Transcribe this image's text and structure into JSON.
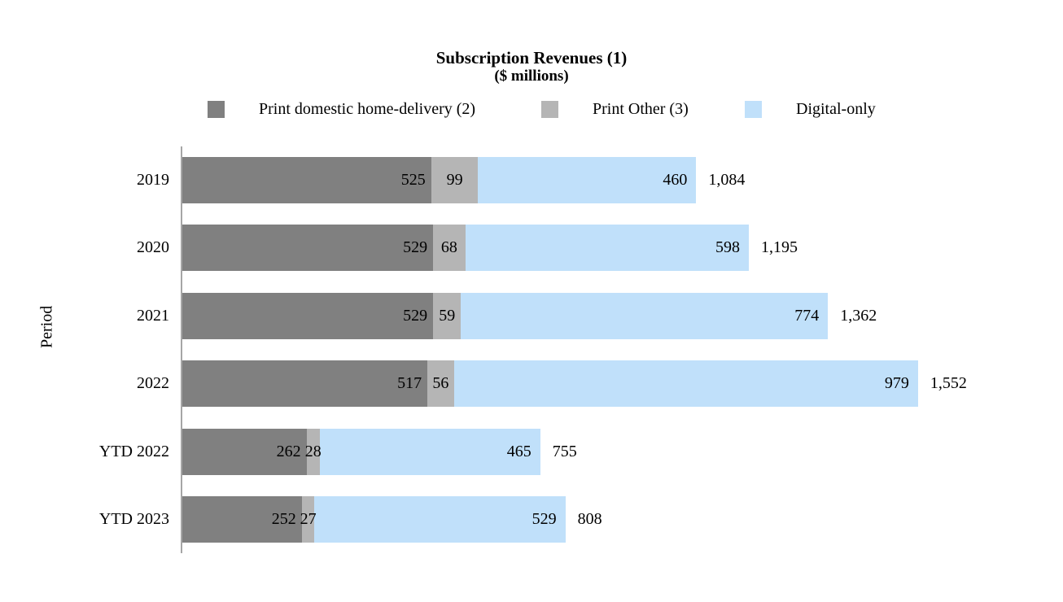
{
  "title": {
    "line1": "Subscription Revenues (1)",
    "line2": "($ millions)"
  },
  "y_axis_title": "Period",
  "legend": [
    {
      "label": "Print domestic home-delivery (2)",
      "color": "#808080"
    },
    {
      "label": "Print Other (3)",
      "color": "#b5b5b5"
    },
    {
      "label": "Digital-only",
      "color": "#c0e0fa"
    }
  ],
  "chart_data": {
    "type": "bar",
    "orientation": "horizontal",
    "stacked": true,
    "title": "Subscription Revenues (1)",
    "subtitle": "($ millions)",
    "xlabel": "",
    "ylabel": "Period",
    "categories": [
      "2019",
      "2020",
      "2021",
      "2022",
      "YTD 2022",
      "YTD 2023"
    ],
    "series": [
      {
        "name": "Print domestic home-delivery (2)",
        "color": "#808080",
        "values": [
          525,
          529,
          529,
          517,
          262,
          252
        ]
      },
      {
        "name": "Print Other (3)",
        "color": "#b5b5b5",
        "values": [
          99,
          68,
          59,
          56,
          28,
          27
        ]
      },
      {
        "name": "Digital-only",
        "color": "#c0e0fa",
        "values": [
          460,
          598,
          774,
          979,
          465,
          529
        ]
      }
    ],
    "totals": [
      1084,
      1195,
      1362,
      1552,
      755,
      808
    ],
    "totals_formatted": [
      "1,084",
      "1,195",
      "1,362",
      "1,552",
      "755",
      "808"
    ],
    "xlim": [
      0,
      1600
    ],
    "grid": false,
    "legend_position": "top",
    "value_labels": "inside-right",
    "axis_line_color": "#a6a6a6"
  }
}
